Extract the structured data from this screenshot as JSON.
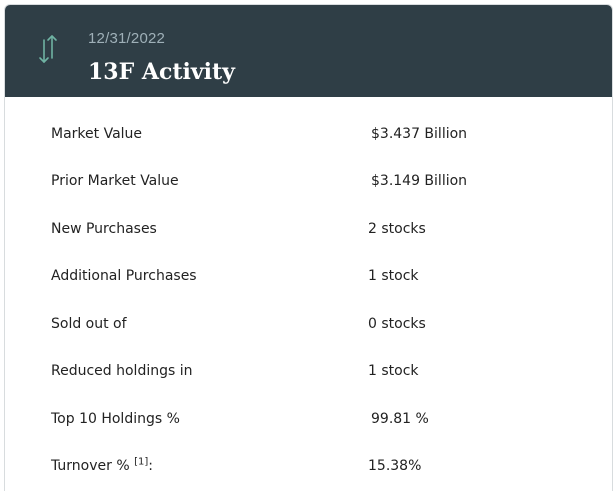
{
  "header": {
    "date": "12/31/2022",
    "title": "13F Activity",
    "icon": "up-down-arrows-icon",
    "icon_color": "#6fb3a3",
    "background_color": "#2f3e46"
  },
  "rows": [
    {
      "label": "Market Value",
      "value": "$3.437 Billion"
    },
    {
      "label": "Prior Market Value",
      "value": "$3.149 Billion"
    },
    {
      "label": "New Purchases",
      "value": "2 stocks"
    },
    {
      "label": "Additional Purchases",
      "value": "1 stock"
    },
    {
      "label": "Sold out of",
      "value": "0 stocks"
    },
    {
      "label": "Reduced holdings in",
      "value": "1 stock"
    },
    {
      "label": "Top 10 Holdings %",
      "value": "99.81 %"
    },
    {
      "label": "Turnover %",
      "footnote": "[1]",
      "suffix": ":",
      "value": "15.38%"
    }
  ]
}
